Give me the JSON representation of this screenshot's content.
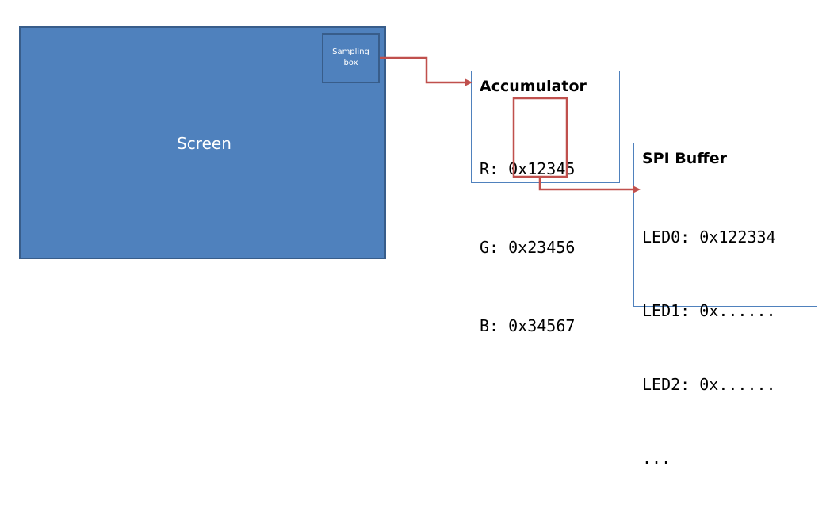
{
  "screen": {
    "label": "Screen"
  },
  "sampling_box": {
    "label": "Sampling\nbox"
  },
  "accumulator": {
    "title": "Accumulator",
    "lines": [
      "R: 0x12345",
      "G: 0x23456",
      "B: 0x34567"
    ]
  },
  "spi_buffer": {
    "title": "SPI Buffer",
    "lines": [
      "LED0: 0x122334",
      "LED1: 0x......",
      "LED2: 0x......",
      "..."
    ]
  },
  "colors": {
    "screen_fill": "#4f81bd",
    "screen_border": "#385d8a",
    "panel_border": "#4f81bd",
    "arrow": "#c0504d"
  }
}
